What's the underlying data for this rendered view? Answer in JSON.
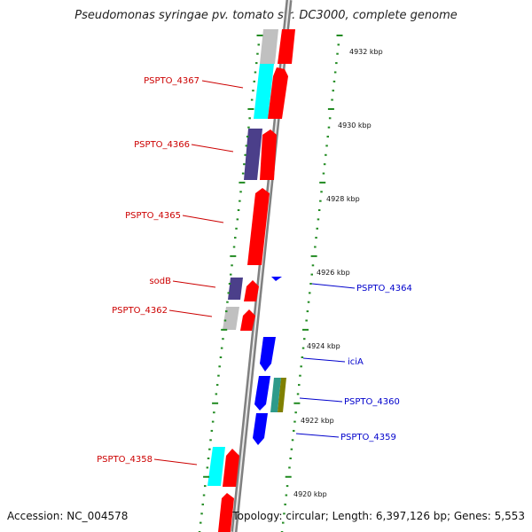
{
  "title": "Pseudomonas syringae pv. tomato str. DC3000, complete genome",
  "accession": "Accession: NC_004578",
  "topology": "Topology: circular; Length: 6,397,126 bp; Genes: 5,553",
  "colors": {
    "forward_gene": "#ff0000",
    "gray_gene": "#c0c0c0",
    "cyan_gene": "#00ffff",
    "purple_gene": "#4b3f8a",
    "reverse_gene": "#0000ff",
    "olive_gene": "#808000",
    "teal_gene": "#2e9a8a",
    "backbone": "#808080",
    "tick": "#228b22",
    "label_forward": "#cc0000",
    "label_reverse": "#0000cc"
  },
  "scale_labels": [
    "4932 kbp",
    "4930 kbp",
    "4928 kbp",
    "4926 kbp",
    "4924 kbp",
    "4922 kbp",
    "4920 kbp"
  ],
  "gene_labels_forward": [
    "PSPTO_4367",
    "PSPTO_4366",
    "PSPTO_4365",
    "sodB",
    "PSPTO_4362",
    "PSPTO_4358"
  ],
  "gene_labels_reverse": [
    "PSPTO_4364",
    "iciA",
    "PSPTO_4360",
    "PSPTO_4359"
  ]
}
